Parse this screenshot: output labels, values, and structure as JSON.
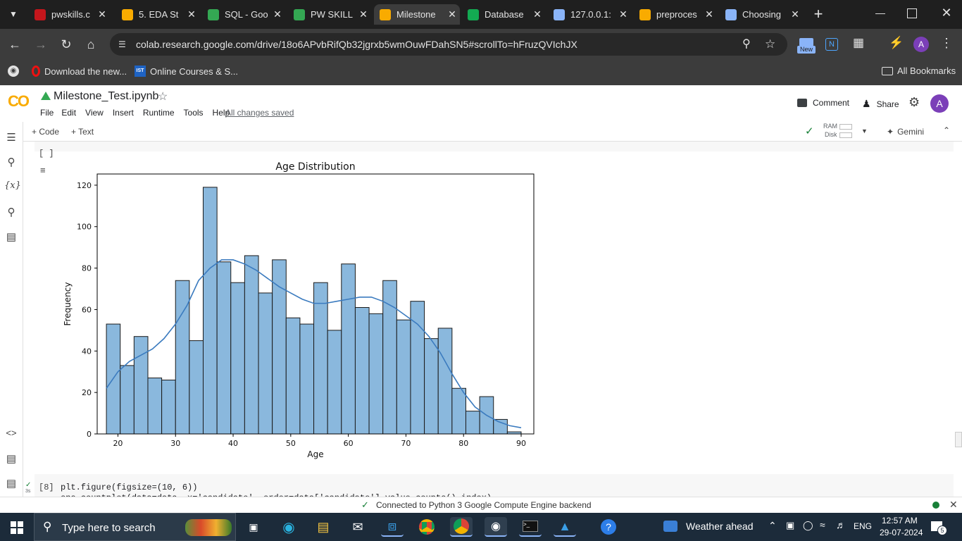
{
  "browser": {
    "tabs": [
      {
        "title": "pwskills.c",
        "favicon": "pwskills-favicon",
        "color": "#c4161c",
        "active": false
      },
      {
        "title": "5. EDA St",
        "favicon": "colab-favicon",
        "color": "#f9ab00",
        "active": false
      },
      {
        "title": "SQL - Goo",
        "favicon": "google-drive-favicon",
        "color": "#34a853",
        "active": false
      },
      {
        "title": "PW SKILL",
        "favicon": "google-drive-favicon",
        "color": "#34a853",
        "active": false
      },
      {
        "title": "Milestone",
        "favicon": "colab-favicon",
        "color": "#f9ab00",
        "active": true
      },
      {
        "title": "Database",
        "favicon": "mongodb-favicon",
        "color": "#13aa52",
        "active": false
      },
      {
        "title": "127.0.0.1:",
        "favicon": "globe-favicon",
        "color": "#8ab4f8",
        "active": false
      },
      {
        "title": "preproces",
        "favicon": "colab-favicon",
        "color": "#f9ab00",
        "active": false
      },
      {
        "title": "Choosing",
        "favicon": "globe-favicon",
        "color": "#8ab4f8",
        "active": false
      }
    ],
    "url": "colab.research.google.com/drive/18o6APvbRifQb32jgrxb5wmOuwFDahSN5#scrollTo=hFruzQVIchJX",
    "new_badge": "New",
    "profile_initial": "A",
    "bookmarks": [
      {
        "label": "Download the new..."
      },
      {
        "label": "Online Courses & S..."
      }
    ],
    "all_bookmarks": "All Bookmarks"
  },
  "colab": {
    "logo": "CO",
    "notebook_title": "Milestone_Test.ipynb",
    "menu": [
      "File",
      "Edit",
      "View",
      "Insert",
      "Runtime",
      "Tools",
      "Help"
    ],
    "saved_status": "All changes saved",
    "comment": "Comment",
    "share": "Share",
    "user_initial": "A",
    "add_code": "+ Code",
    "add_text": "+ Text",
    "ram_label": "RAM",
    "disk_label": "Disk",
    "gemini": "Gemini",
    "cell_exec": "[ ]",
    "next_cell_num": "[8]",
    "next_cell_time": "3s",
    "next_cell_code_1": "plt.figure(figsize=(10, 6))",
    "next_cell_code_2": "sns.countplot(data=data, x='candidate', order=data['candidate'].value_counts().index)",
    "status_text": "Connected to Python 3 Google Compute Engine backend"
  },
  "chart_data": {
    "type": "bar",
    "title": "Age Distribution",
    "xlabel": "Age",
    "ylabel": "Frequency",
    "xlim": [
      16.4,
      92.2
    ],
    "ylim": [
      0,
      125.4
    ],
    "xticks": [
      20,
      30,
      40,
      50,
      60,
      70,
      80,
      90
    ],
    "yticks": [
      0,
      20,
      40,
      60,
      80,
      100,
      120
    ],
    "bin_start": 18,
    "bin_width": 2.4,
    "values": [
      53,
      33,
      47,
      27,
      26,
      74,
      45,
      119,
      83,
      73,
      86,
      68,
      84,
      56,
      53,
      73,
      50,
      82,
      61,
      58,
      74,
      55,
      64,
      46,
      51,
      22,
      11,
      18,
      7,
      1
    ],
    "kde": {
      "x": [
        18,
        20,
        22,
        24,
        26,
        28,
        30,
        32,
        34,
        36,
        38,
        40,
        42,
        44,
        46,
        48,
        50,
        52,
        54,
        56,
        58,
        60,
        62,
        64,
        66,
        68,
        70,
        72,
        74,
        76,
        78,
        80,
        82,
        84,
        86,
        88,
        90
      ],
      "y": [
        22,
        30,
        35,
        38,
        41,
        46,
        53,
        62,
        74,
        80,
        84,
        84,
        82,
        79,
        75,
        71,
        68,
        65,
        63,
        63,
        64,
        65,
        66,
        66,
        64,
        61,
        57,
        53,
        47,
        39,
        29,
        20,
        13,
        9,
        6,
        4,
        3
      ]
    },
    "bar_color": "#8ab8dd",
    "line_color": "#3b7bbf",
    "grid": false
  },
  "taskbar": {
    "search_placeholder": "Type here to search",
    "weather": "Weather ahead",
    "language": "ENG",
    "time": "12:57 AM",
    "date": "29-07-2024",
    "notification_count": "5"
  }
}
